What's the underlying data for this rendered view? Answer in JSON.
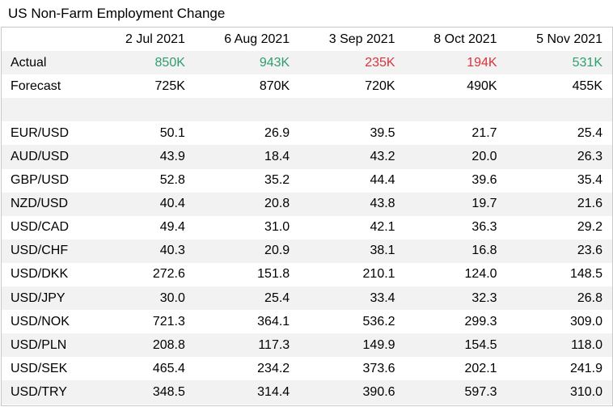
{
  "title": "US Non-Farm Employment Change",
  "columns": [
    "",
    "2 Jul 2021",
    "6 Aug 2021",
    "3 Sep 2021",
    "8 Oct 2021",
    "5 Nov 2021"
  ],
  "actual": {
    "label": "Actual",
    "values": [
      "850K",
      "943K",
      "235K",
      "194K",
      "531K"
    ],
    "direction": [
      "up",
      "up",
      "down",
      "down",
      "up"
    ]
  },
  "forecast": {
    "label": "Forecast",
    "values": [
      "725K",
      "870K",
      "720K",
      "490K",
      "455K"
    ]
  },
  "pairs": [
    {
      "label": "EUR/USD",
      "values": [
        "50.1",
        "26.9",
        "39.5",
        "21.7",
        "25.4"
      ]
    },
    {
      "label": "AUD/USD",
      "values": [
        "43.9",
        "18.4",
        "43.2",
        "20.0",
        "26.3"
      ]
    },
    {
      "label": "GBP/USD",
      "values": [
        "52.8",
        "35.2",
        "44.4",
        "39.6",
        "35.4"
      ]
    },
    {
      "label": "NZD/USD",
      "values": [
        "40.4",
        "20.8",
        "43.8",
        "19.7",
        "21.6"
      ]
    },
    {
      "label": "USD/CAD",
      "values": [
        "49.4",
        "31.0",
        "42.1",
        "36.3",
        "29.2"
      ]
    },
    {
      "label": "USD/CHF",
      "values": [
        "40.3",
        "20.9",
        "38.1",
        "16.8",
        "23.6"
      ]
    },
    {
      "label": "USD/DKK",
      "values": [
        "272.6",
        "151.8",
        "210.1",
        "124.0",
        "148.5"
      ]
    },
    {
      "label": "USD/JPY",
      "values": [
        "30.0",
        "25.4",
        "33.4",
        "32.3",
        "26.8"
      ]
    },
    {
      "label": "USD/NOK",
      "values": [
        "721.3",
        "364.1",
        "536.2",
        "299.3",
        "309.0"
      ]
    },
    {
      "label": "USD/PLN",
      "values": [
        "208.8",
        "117.3",
        "149.9",
        "154.5",
        "118.0"
      ]
    },
    {
      "label": "USD/SEK",
      "values": [
        "465.4",
        "234.2",
        "373.6",
        "202.1",
        "241.9"
      ]
    },
    {
      "label": "USD/TRY",
      "values": [
        "348.5",
        "314.4",
        "390.6",
        "597.3",
        "310.0"
      ]
    }
  ],
  "colors": {
    "up": "#2e9e6e",
    "down": "#d9333c",
    "stripe": "#f2f2f2",
    "border": "#c8c8c8"
  }
}
